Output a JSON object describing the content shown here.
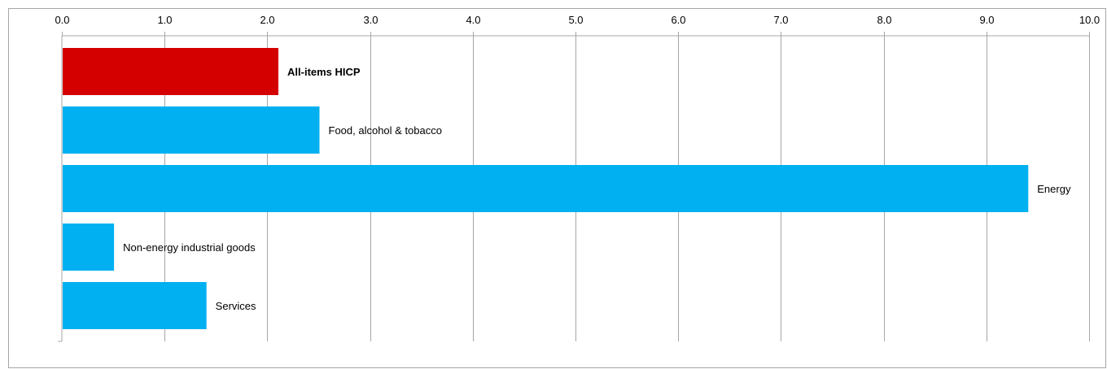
{
  "chart_data": {
    "type": "bar",
    "orientation": "horizontal",
    "title": "",
    "xlabel": "",
    "ylabel": "",
    "xlim": [
      0,
      10
    ],
    "x_ticks": [
      "0.0",
      "1.0",
      "2.0",
      "3.0",
      "4.0",
      "5.0",
      "6.0",
      "7.0",
      "8.0",
      "9.0",
      "10.0"
    ],
    "x_axis_position": "top",
    "grid": true,
    "categories": [
      "All-items HICP",
      "Food, alcohol & tobacco",
      "Energy",
      "Non-energy industrial goods",
      "Services"
    ],
    "values": [
      2.1,
      2.5,
      9.4,
      0.5,
      1.4
    ],
    "colors": [
      "#d40000",
      "#00b0f0",
      "#00b0f0",
      "#00b0f0",
      "#00b0f0"
    ],
    "label_emphasis": [
      true,
      false,
      false,
      false,
      false
    ],
    "gridline_color": "#a6a6a6"
  }
}
